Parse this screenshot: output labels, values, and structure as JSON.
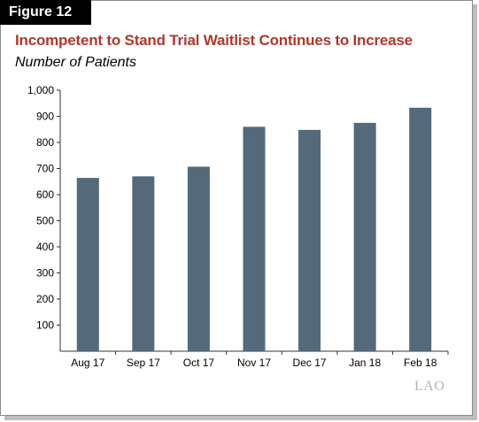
{
  "figure": {
    "label": "Figure 12",
    "logo": "LAO"
  },
  "colors": {
    "bar": "#546979",
    "title": "#b0382b",
    "axis": "#333333",
    "grid": "#cccccc"
  },
  "chart_data": {
    "type": "bar",
    "title": "Incompetent to Stand Trial Waitlist Continues to Increase",
    "subtitle": "Number of Patients",
    "categories": [
      "Aug 17",
      "Sep 17",
      "Oct 17",
      "Nov 17",
      "Dec 17",
      "Jan 18",
      "Feb 18"
    ],
    "values": [
      664,
      670,
      707,
      860,
      848,
      875,
      933
    ],
    "ylim": [
      0,
      1000
    ],
    "yticks": [
      100,
      200,
      300,
      400,
      500,
      600,
      700,
      800,
      900,
      1000
    ],
    "ytick_labels": [
      "100",
      "200",
      "300",
      "400",
      "500",
      "600",
      "700",
      "800",
      "900",
      "1,000"
    ],
    "grid": false,
    "legend": false
  }
}
